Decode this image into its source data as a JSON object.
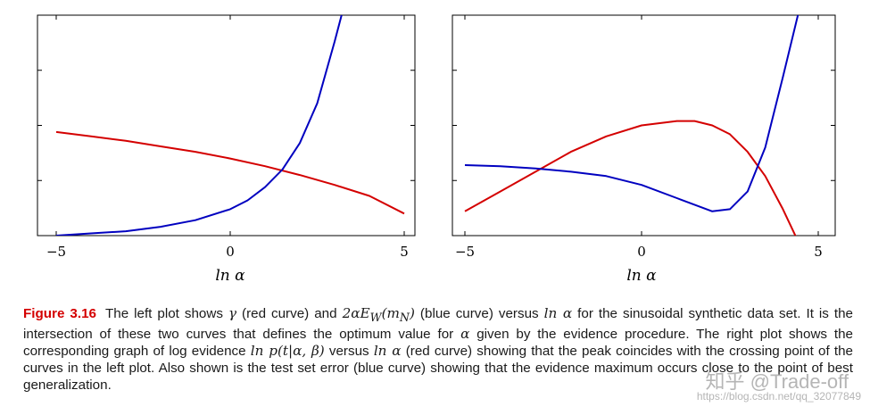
{
  "chart_data": [
    {
      "type": "line",
      "panel": "left",
      "xlabel": "ln α",
      "xlim": [
        -5,
        5
      ],
      "xticks": [
        "−5",
        "0",
        "5"
      ],
      "ylim": [
        0,
        1
      ],
      "yaxis_labels": false,
      "series": [
        {
          "color": "#d40000",
          "x": [
            -5,
            -4,
            -3,
            -2,
            -1,
            0,
            1,
            2,
            3,
            4,
            5
          ],
          "y": [
            0.47,
            0.45,
            0.43,
            0.405,
            0.38,
            0.35,
            0.315,
            0.275,
            0.23,
            0.18,
            0.1
          ]
        },
        {
          "color": "#0000c0",
          "x": [
            -5,
            -4,
            -3,
            -2,
            -1,
            0,
            0.5,
            1,
            1.5,
            2,
            2.5,
            3,
            3.2
          ],
          "y": [
            0.0,
            0.01,
            0.02,
            0.04,
            0.07,
            0.12,
            0.16,
            0.22,
            0.3,
            0.42,
            0.6,
            0.88,
            1.0
          ]
        }
      ]
    },
    {
      "type": "line",
      "panel": "right",
      "xlabel": "ln α",
      "xlim": [
        -5,
        5
      ],
      "xticks": [
        "−5",
        "0",
        "5"
      ],
      "ylim": [
        0,
        1
      ],
      "yaxis_labels": false,
      "series": [
        {
          "color": "#d40000",
          "x": [
            -5,
            -4,
            -3,
            -2,
            -1,
            0,
            1,
            1.5,
            2,
            2.5,
            3,
            3.5,
            4,
            4.5
          ],
          "y": [
            0.11,
            0.2,
            0.29,
            0.38,
            0.45,
            0.5,
            0.52,
            0.52,
            0.5,
            0.46,
            0.38,
            0.27,
            0.12,
            -0.05
          ]
        },
        {
          "color": "#0000c0",
          "x": [
            -5,
            -4,
            -3,
            -2,
            -1,
            0,
            1,
            2,
            2.5,
            3,
            3.5,
            4,
            4.5
          ],
          "y": [
            0.32,
            0.315,
            0.305,
            0.29,
            0.27,
            0.23,
            0.17,
            0.11,
            0.12,
            0.2,
            0.4,
            0.72,
            1.05
          ]
        }
      ]
    }
  ],
  "caption": {
    "label": "Figure 3.16",
    "segments": [
      "The left plot shows ",
      "γ",
      " (red curve) and ",
      "2αE",
      "W",
      "(m",
      "N",
      ")",
      " (blue curve) versus ",
      "ln α",
      " for the sinusoidal synthetic data set. It is the intersection of these two curves that defines the optimum value for ",
      "α",
      " given by the evidence procedure. The right plot shows the corresponding graph of log evidence ",
      "ln p(t|α, β)",
      " versus ",
      "ln α",
      " (red curve) showing that the peak coincides with the crossing point of the curves in the left plot. Also shown is the test set error (blue curve) showing that the evidence maximum occurs close to the point of best generalization."
    ]
  },
  "watermark": {
    "text": "知乎 @Trade-off",
    "url": "https://blog.csdn.net/qq_32077849"
  }
}
